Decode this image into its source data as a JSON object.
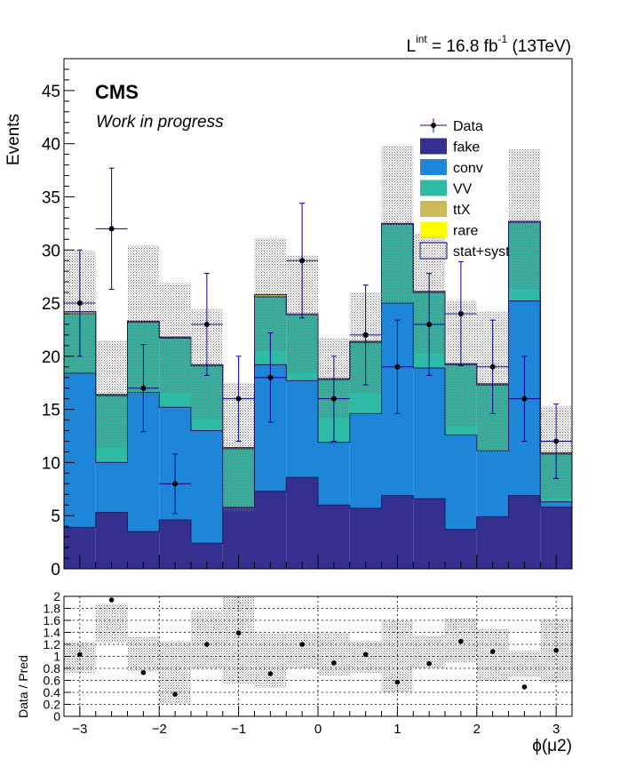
{
  "header": {
    "lumi_prefix": "L",
    "lumi_sup": "int",
    "lumi_eq": " = 16.8 fb",
    "lumi_unit_sup": "-1",
    "lumi_suffix": " (13TeV)"
  },
  "labels": {
    "experiment": "CMS",
    "status": "Work in progress"
  },
  "colors": {
    "fake": "#35308f",
    "conv": "#1e86d9",
    "VV": "#2ebba6",
    "ttX": "#cdb95b",
    "rare": "#ffff00",
    "data": "#000000",
    "error_band": "#8c8c8c",
    "data_error": "#000099"
  },
  "chart_data": [
    {
      "type": "bar",
      "subtype": "stacked-histogram",
      "xlabel": "",
      "ylabel": "Events",
      "xlim": [
        -3.2,
        3.2
      ],
      "ylim": [
        0,
        48
      ],
      "yticks": [
        0,
        5,
        10,
        15,
        20,
        25,
        30,
        35,
        40,
        45
      ],
      "xticks": [
        -3,
        -2,
        -1,
        0,
        1,
        2,
        3
      ],
      "bin_edges": [
        -3.2,
        -2.8,
        -2.4,
        -2.0,
        -1.6,
        -1.2,
        -0.8,
        -0.4,
        0.0,
        0.4,
        0.8,
        1.2,
        1.6,
        2.0,
        2.4,
        2.8,
        3.2
      ],
      "legend_position": "top-right",
      "legend": [
        {
          "label": "Data",
          "style": "marker"
        },
        {
          "label": "fake",
          "style": "fill",
          "color_key": "fake"
        },
        {
          "label": "conv",
          "style": "fill",
          "color_key": "conv"
        },
        {
          "label": "VV",
          "style": "fill",
          "color_key": "VV"
        },
        {
          "label": "ttX",
          "style": "fill",
          "color_key": "ttX"
        },
        {
          "label": "rare",
          "style": "fill",
          "color_key": "rare"
        },
        {
          "label": "stat+syst",
          "style": "hatch"
        }
      ],
      "series": [
        {
          "name": "fake",
          "values": [
            3.9,
            5.3,
            3.5,
            4.6,
            2.4,
            5.8,
            7.3,
            8.6,
            6.0,
            5.7,
            6.9,
            6.6,
            3.7,
            4.9,
            6.9,
            5.8
          ]
        },
        {
          "name": "conv",
          "values": [
            14.5,
            4.7,
            13.1,
            10.6,
            10.6,
            0.0,
            11.9,
            9.1,
            5.9,
            8.9,
            18.1,
            12.3,
            8.9,
            6.2,
            18.3,
            0.5
          ]
        },
        {
          "name": "VV",
          "values": [
            5.6,
            6.3,
            6.6,
            6.5,
            6.1,
            5.5,
            6.4,
            6.2,
            5.9,
            6.7,
            7.4,
            7.1,
            6.6,
            6.2,
            7.4,
            4.5
          ]
        },
        {
          "name": "ttX",
          "values": [
            0.2,
            0.1,
            0.1,
            0.1,
            0.1,
            0.1,
            0.2,
            0.1,
            0.1,
            0.1,
            0.1,
            0.1,
            0.1,
            0.1,
            0.1,
            0.1
          ]
        },
        {
          "name": "rare",
          "values": [
            0.0,
            0.0,
            0.0,
            0.0,
            0.0,
            0.0,
            0.0,
            0.0,
            0.0,
            0.0,
            0.0,
            0.0,
            0.0,
            0.0,
            0.0,
            0.0
          ]
        }
      ],
      "stat_syst": {
        "up": [
          29.9,
          21.5,
          30.4,
          26.9,
          24.4,
          17.5,
          31.1,
          29.5,
          21.7,
          26.0,
          39.8,
          31.6,
          25.2,
          24.2,
          39.5,
          15.3
        ],
        "down": [
          18.3,
          11.4,
          16.3,
          16.5,
          14.1,
          5.4,
          20.5,
          18.4,
          14.2,
          16.5,
          25.0,
          20.3,
          13.4,
          10.9,
          26.3,
          6.6
        ]
      },
      "data": {
        "x": [
          -3.0,
          -2.6,
          -2.2,
          -1.8,
          -1.4,
          -1.0,
          -0.6,
          -0.2,
          0.2,
          0.6,
          1.0,
          1.4,
          1.8,
          2.2,
          2.6,
          3.0
        ],
        "y": [
          25,
          32,
          17,
          8,
          23,
          16,
          18,
          29,
          16,
          22,
          19,
          23,
          24,
          19,
          16,
          12
        ],
        "err_up": [
          5.0,
          5.7,
          4.1,
          2.8,
          4.8,
          4.0,
          4.2,
          5.4,
          4.0,
          4.7,
          4.4,
          4.8,
          4.9,
          4.4,
          4.0,
          3.5
        ],
        "err_down": [
          5.0,
          5.7,
          4.1,
          2.8,
          4.8,
          4.0,
          4.2,
          5.4,
          4.0,
          4.7,
          4.4,
          4.8,
          4.9,
          4.4,
          4.0,
          3.5
        ]
      }
    },
    {
      "type": "scatter",
      "subtype": "ratio",
      "xlabel": "ϕ(μ2)",
      "ylabel": "Data / Pred",
      "xlim": [
        -3.2,
        3.2
      ],
      "ylim": [
        0,
        2
      ],
      "yticks": [
        0,
        0.2,
        0.4,
        0.6,
        0.8,
        1,
        1.2,
        1.4,
        1.6,
        1.8,
        2
      ],
      "ytick_labels": [
        "0",
        "0.2",
        "0.4",
        "0.6",
        "0.8",
        "1",
        "1.2",
        "1.4",
        "1.6",
        "1.8",
        "2"
      ],
      "xticks": [
        -3,
        -2,
        -1,
        0,
        1,
        2,
        3
      ],
      "xtick_labels": [
        "−3",
        "−2",
        "−1",
        "0",
        "1",
        "2",
        "3"
      ],
      "grid": true,
      "band_up": [
        1.24,
        1.88,
        1.32,
        1.25,
        1.76,
        2.0,
        1.38,
        1.38,
        1.39,
        1.26,
        1.6,
        1.34,
        1.63,
        1.45,
        1.09,
        1.62
      ],
      "band_down": [
        0.72,
        1.23,
        0.75,
        0.21,
        0.78,
        0.55,
        0.48,
        0.8,
        0.68,
        0.72,
        0.4,
        0.8,
        0.9,
        0.59,
        0.65,
        0.56
      ],
      "ratio": {
        "x": [
          -3.0,
          -2.6,
          -2.2,
          -1.8,
          -1.4,
          -1.0,
          -0.6,
          -0.2,
          0.2,
          0.6,
          1.0,
          1.4,
          1.8,
          2.2,
          2.6,
          3.0
        ],
        "y": [
          1.03,
          1.94,
          0.73,
          0.37,
          1.2,
          1.39,
          0.71,
          1.2,
          0.89,
          1.03,
          0.57,
          0.88,
          1.25,
          1.08,
          0.49,
          1.1
        ]
      }
    }
  ]
}
